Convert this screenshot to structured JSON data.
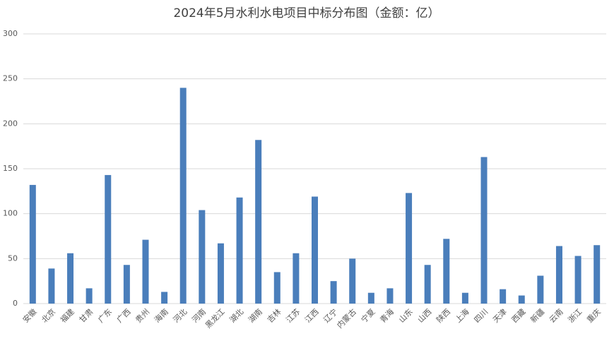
{
  "chart_data": {
    "type": "bar",
    "title": "2024年5月水利水电项目中标分布图（金额：亿）",
    "categories": [
      "安徽",
      "北京",
      "福建",
      "甘肃",
      "广东",
      "广西",
      "贵州",
      "海南",
      "河北",
      "河南",
      "黑龙江",
      "湖北",
      "湖南",
      "吉林",
      "江苏",
      "江西",
      "辽宁",
      "内蒙古",
      "宁夏",
      "青海",
      "山东",
      "山西",
      "陕西",
      "上海",
      "四川",
      "天津",
      "西藏",
      "新疆",
      "云南",
      "浙江",
      "重庆"
    ],
    "values": [
      132,
      39,
      56,
      17,
      143,
      43,
      71,
      13,
      240,
      104,
      67,
      118,
      182,
      35,
      56,
      119,
      25,
      50,
      12,
      17,
      123,
      43,
      72,
      12,
      163,
      16,
      9,
      31,
      64,
      53,
      65
    ],
    "color": "#4a7ebb",
    "ylim": [
      0,
      300
    ],
    "yticks": [
      0,
      50,
      100,
      150,
      200,
      250,
      300
    ],
    "grid": true
  }
}
